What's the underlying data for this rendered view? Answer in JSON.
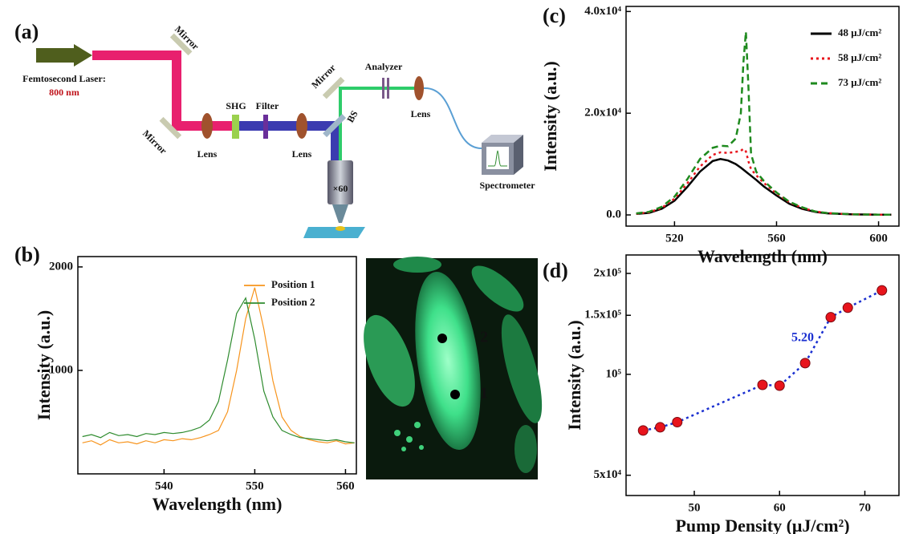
{
  "panel_labels": [
    "(a)",
    "(b)",
    "(c)",
    "(d)"
  ],
  "diagram": {
    "laser": "Femtosecond Laser:",
    "wavelength": "800 nm",
    "mirrors": [
      "Mirror",
      "Mirror",
      "Mirror"
    ],
    "lenses": [
      "Lens",
      "Lens",
      "Lens"
    ],
    "shg": "SHG",
    "filter": "Filter",
    "bs": "BS",
    "analyzer": "Analyzer",
    "objective": "×60",
    "spectrometer": "Spectrometer"
  },
  "image": {
    "points": [
      "1",
      "2"
    ]
  },
  "chart_data": [
    {
      "type": "line",
      "xlabel": "Wavelength (nm)",
      "ylabel": "Intensity (a.u.)",
      "xlim": [
        530.5,
        561.2
      ],
      "ylim": [
        0,
        2100
      ],
      "xticks": [
        540,
        550,
        560
      ],
      "yticks": [
        1000,
        2000
      ],
      "legend": "upper right",
      "x": [
        531,
        532,
        533,
        534,
        535,
        536,
        537,
        538,
        539,
        540,
        541,
        542,
        543,
        544,
        545,
        546,
        547,
        548,
        549,
        550,
        551,
        552,
        553,
        554,
        555,
        556,
        557,
        558,
        559,
        560,
        561
      ],
      "series": [
        {
          "name": "Position 1",
          "color": "#f7941d",
          "line_style": "solid",
          "values": [
            300,
            320,
            280,
            330,
            300,
            310,
            290,
            320,
            300,
            330,
            320,
            340,
            330,
            350,
            380,
            420,
            600,
            1000,
            1500,
            1800,
            1400,
            900,
            550,
            420,
            360,
            330,
            310,
            300,
            320,
            290,
            300
          ]
        },
        {
          "name": "Position 2",
          "color": "#2e8b2e",
          "line_style": "solid",
          "values": [
            360,
            380,
            350,
            400,
            370,
            380,
            360,
            390,
            380,
            400,
            390,
            400,
            420,
            450,
            520,
            700,
            1100,
            1550,
            1700,
            1300,
            800,
            550,
            420,
            380,
            350,
            340,
            330,
            320,
            330,
            310,
            300
          ]
        }
      ]
    },
    {
      "type": "line",
      "xlabel": "Wavelength (nm)",
      "ylabel": "Intensity (a.u.)",
      "xlim": [
        501,
        608
      ],
      "ylim": [
        -2200,
        41000
      ],
      "xticks": [
        520,
        560,
        600
      ],
      "yticks": [
        {
          "value": 0,
          "label": "0.0"
        },
        {
          "value": 20000,
          "label": "2.0x10⁴"
        },
        {
          "value": 40000,
          "label": "4.0x10⁴"
        }
      ],
      "legend": "upper right",
      "x": [
        505,
        510,
        515,
        520,
        525,
        530,
        535,
        538,
        541,
        544,
        546,
        547,
        548,
        549,
        550,
        552,
        555,
        560,
        565,
        570,
        575,
        580,
        590,
        600,
        605
      ],
      "series": [
        {
          "name": "48 μJ/cm²",
          "color": "#000000",
          "line_style": "solid",
          "values": [
            200,
            400,
            1200,
            2800,
            5500,
            8500,
            10600,
            11000,
            10700,
            10000,
            9300,
            8900,
            8500,
            8100,
            7700,
            6900,
            5600,
            3800,
            2200,
            1200,
            600,
            300,
            100,
            50,
            50
          ]
        },
        {
          "name": "58 μJ/cm²",
          "color": "#e8141c",
          "line_style": "dotted",
          "values": [
            250,
            500,
            1400,
            3200,
            6200,
            9500,
            11800,
            12300,
            12200,
            12400,
            12600,
            13000,
            12500,
            10500,
            9000,
            7800,
            6300,
            4200,
            2500,
            1400,
            700,
            350,
            120,
            60,
            60
          ]
        },
        {
          "name": "73 μJ/cm²",
          "color": "#1e8a1e",
          "line_style": "dashed",
          "values": [
            300,
            600,
            1600,
            3600,
            7000,
            11000,
            13200,
            13600,
            13500,
            15000,
            20000,
            30000,
            36000,
            25000,
            12000,
            8500,
            6700,
            4400,
            2600,
            1500,
            700,
            350,
            120,
            60,
            60
          ]
        }
      ]
    },
    {
      "type": "scatter",
      "xlabel": "Pump Density (μJ/cm²)",
      "ylabel": "Intensity (a.u.)",
      "xlim": [
        42,
        74
      ],
      "ylim": [
        43500,
        227000
      ],
      "log_y": true,
      "xticks": [
        50,
        60,
        70
      ],
      "yticks": [
        {
          "value": 50000,
          "label": "5x10⁴"
        },
        {
          "value": 100000,
          "label": "10⁵"
        },
        {
          "value": 150000,
          "label": "1.5x10⁵"
        },
        {
          "value": 200000,
          "label": "2x10⁵"
        }
      ],
      "annotation": "5.20",
      "x": [
        44,
        46,
        48,
        58,
        60,
        63,
        66,
        68,
        72
      ],
      "series": [
        {
          "color": "#e8141c",
          "line_color": "#1a2fd0",
          "line_style": "dotted",
          "values": [
            68000,
            69500,
            72000,
            93000,
            92500,
            108000,
            148000,
            158000,
            178000
          ]
        }
      ]
    }
  ]
}
